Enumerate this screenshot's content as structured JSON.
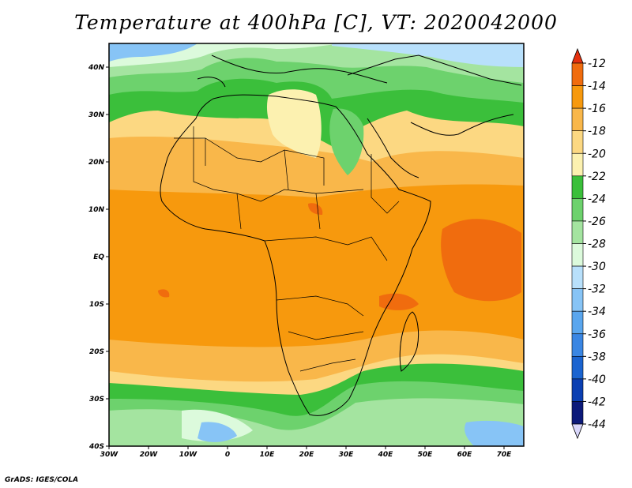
{
  "title": "Temperature at 400hPa [C], VT: 2020042000",
  "footer": "GrADS: IGES/COLA",
  "map": {
    "lon_range": [
      -30,
      75
    ],
    "lat_range": [
      -40,
      45
    ],
    "lat_ticks": [
      {
        "value": 40,
        "label": "40N"
      },
      {
        "value": 30,
        "label": "30N"
      },
      {
        "value": 20,
        "label": "20N"
      },
      {
        "value": 10,
        "label": "10N"
      },
      {
        "value": 0,
        "label": "EQ"
      },
      {
        "value": -10,
        "label": "10S"
      },
      {
        "value": -20,
        "label": "20S"
      },
      {
        "value": -30,
        "label": "30S"
      },
      {
        "value": -40,
        "label": "40S"
      }
    ],
    "lon_ticks": [
      {
        "value": -30,
        "label": "30W"
      },
      {
        "value": -20,
        "label": "20W"
      },
      {
        "value": -10,
        "label": "10W"
      },
      {
        "value": 0,
        "label": "0"
      },
      {
        "value": 10,
        "label": "10E"
      },
      {
        "value": 20,
        "label": "20E"
      },
      {
        "value": 30,
        "label": "30E"
      },
      {
        "value": 40,
        "label": "40E"
      },
      {
        "value": 50,
        "label": "50E"
      },
      {
        "value": 60,
        "label": "60E"
      },
      {
        "value": 70,
        "label": "70E"
      }
    ]
  },
  "colorbar": {
    "levels": [
      "-12",
      "-14",
      "-16",
      "-18",
      "-20",
      "-22",
      "-24",
      "-26",
      "-28",
      "-30",
      "-32",
      "-34",
      "-36",
      "-38",
      "-40",
      "-42",
      "-44"
    ],
    "colors": [
      "#e5300e",
      "#f06c0e",
      "#f7990d",
      "#f9b74a",
      "#fcd882",
      "#fcf1b0",
      "#3bbf3b",
      "#6dd26d",
      "#a4e4a0",
      "#dcfadc",
      "#b8e0fb",
      "#87c4f6",
      "#5aa6ee",
      "#3a86e3",
      "#1b64d0",
      "#0b3fb2",
      "#0c1a7a"
    ],
    "top_arrow_color": "#e5300e",
    "bottom_arrow_color": "#d9d7fb"
  }
}
